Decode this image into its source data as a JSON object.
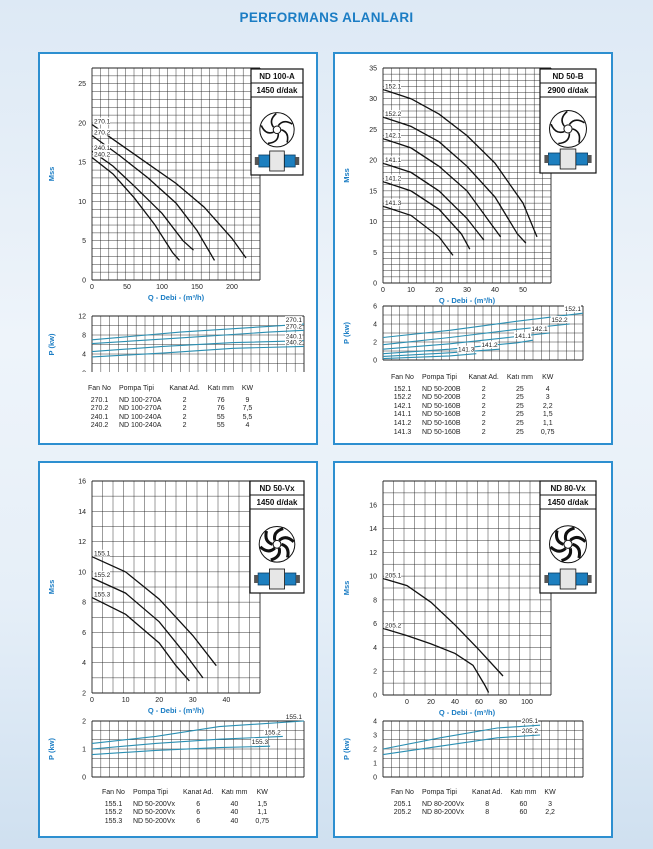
{
  "page_title": "PERFORMANS ALANLARI",
  "colors": {
    "title": "#1b7dc4",
    "frame": "#2d8fd0",
    "curve": "#111111",
    "power_curve": "#2a8fb2",
    "grid": "#222222"
  },
  "table_headers": [
    "Fan No",
    "Pompa Tipi",
    "Kanat Ad.",
    "Katı mm",
    "KW"
  ],
  "chart_data": [
    {
      "type": "line",
      "model": "ND 100-A",
      "speed": "1450 d/dak",
      "xlabel": "Q - Debi - (m³/h)",
      "ylabel": "Mss",
      "plabel": "P (kw)",
      "xlim": [
        0,
        240
      ],
      "ylim": [
        0,
        27
      ],
      "xticks": [
        0,
        50,
        100,
        150,
        200
      ],
      "yticks": [
        0,
        5,
        10,
        15,
        20,
        25
      ],
      "series": [
        {
          "name": "270.1",
          "points": [
            [
              0,
              19.8
            ],
            [
              40,
              17.3
            ],
            [
              80,
              14.8
            ],
            [
              120,
              12.3
            ],
            [
              160,
              9.3
            ],
            [
              200,
              5.3
            ],
            [
              220,
              2.8
            ]
          ]
        },
        {
          "name": "270.2",
          "points": [
            [
              0,
              18.4
            ],
            [
              40,
              15.8
            ],
            [
              80,
              13
            ],
            [
              120,
              9.8
            ],
            [
              150,
              6.3
            ],
            [
              175,
              2.5
            ]
          ]
        },
        {
          "name": "240.1",
          "points": [
            [
              0,
              16.4
            ],
            [
              30,
              14.5
            ],
            [
              60,
              12
            ],
            [
              100,
              8.5
            ],
            [
              130,
              5
            ],
            [
              145,
              3.8
            ]
          ]
        },
        {
          "name": "240.2",
          "points": [
            [
              0,
              15.6
            ],
            [
              30,
              13.5
            ],
            [
              60,
              10.5
            ],
            [
              90,
              7
            ],
            [
              115,
              3.5
            ],
            [
              125,
              2.5
            ]
          ]
        }
      ],
      "power": {
        "ylim": [
          0,
          12
        ],
        "yticks": [
          0,
          4,
          8,
          12
        ],
        "series": [
          {
            "name": "270.1",
            "points": [
              [
                0,
                7
              ],
              [
                100,
                8.6
              ],
              [
                200,
                9.8
              ],
              [
                240,
                10.3
              ]
            ]
          },
          {
            "name": "270.2",
            "points": [
              [
                0,
                6.2
              ],
              [
                100,
                7.4
              ],
              [
                200,
                8.6
              ],
              [
                240,
                9
              ]
            ]
          },
          {
            "name": "240.1",
            "points": [
              [
                0,
                4.5
              ],
              [
                80,
                5.6
              ],
              [
                160,
                6.4
              ],
              [
                240,
                6.8
              ]
            ]
          },
          {
            "name": "240.2",
            "points": [
              [
                0,
                3.4
              ],
              [
                80,
                4.2
              ],
              [
                160,
                5.2
              ],
              [
                240,
                5.6
              ]
            ]
          }
        ]
      },
      "table": [
        [
          "270.1",
          "ND 100-270A",
          "2",
          "76",
          "9"
        ],
        [
          "270.2",
          "ND 100-270A",
          "2",
          "76",
          "7,5"
        ],
        [
          "240.1",
          "ND 100-240A",
          "2",
          "55",
          "5,5"
        ],
        [
          "240.2",
          "ND 100-240A",
          "2",
          "55",
          "4"
        ]
      ]
    },
    {
      "type": "line",
      "model": "ND 50-B",
      "speed": "2900 d/dak",
      "xlabel": "Q - Debi - (m³/h)",
      "ylabel": "Mss",
      "plabel": "P (kw)",
      "xlim": [
        0,
        60
      ],
      "ylim": [
        0,
        35
      ],
      "xticks": [
        0,
        10,
        20,
        30,
        40,
        50
      ],
      "yticks": [
        0,
        5,
        10,
        15,
        20,
        25,
        30,
        35
      ],
      "series": [
        {
          "name": "152.1",
          "points": [
            [
              0,
              31.5
            ],
            [
              10,
              30
            ],
            [
              20,
              27.5
            ],
            [
              30,
              24
            ],
            [
              40,
              19.5
            ],
            [
              50,
              13
            ],
            [
              55,
              7.5
            ]
          ]
        },
        {
          "name": "152.2",
          "points": [
            [
              0,
              27
            ],
            [
              10,
              25.5
            ],
            [
              20,
              23
            ],
            [
              30,
              19
            ],
            [
              40,
              14
            ],
            [
              48,
              8
            ],
            [
              51,
              6.5
            ]
          ]
        },
        {
          "name": "142.1",
          "points": [
            [
              0,
              23.5
            ],
            [
              10,
              22
            ],
            [
              20,
              19
            ],
            [
              30,
              15
            ],
            [
              38,
              10
            ],
            [
              42,
              7.5
            ]
          ]
        },
        {
          "name": "141.1",
          "points": [
            [
              0,
              19.5
            ],
            [
              10,
              18
            ],
            [
              20,
              15
            ],
            [
              30,
              10.5
            ],
            [
              36,
              7
            ]
          ]
        },
        {
          "name": "141.2",
          "points": [
            [
              0,
              16.5
            ],
            [
              10,
              15
            ],
            [
              20,
              12
            ],
            [
              28,
              8
            ],
            [
              31,
              5.5
            ]
          ]
        },
        {
          "name": "141.3",
          "points": [
            [
              0,
              12.5
            ],
            [
              10,
              11
            ],
            [
              20,
              7.5
            ],
            [
              25,
              4.5
            ]
          ]
        }
      ],
      "power": {
        "ylim": [
          0,
          6
        ],
        "yticks": [
          0,
          2,
          4,
          6
        ],
        "series": [
          {
            "name": "152.1",
            "points": [
              [
                0,
                2.5
              ],
              [
                20,
                3.3
              ],
              [
                40,
                4.3
              ],
              [
                60,
                5.2
              ]
            ]
          },
          {
            "name": "152.2",
            "points": [
              [
                0,
                1.7
              ],
              [
                20,
                2.5
              ],
              [
                40,
                3.4
              ],
              [
                56,
                4
              ]
            ]
          },
          {
            "name": "142.1",
            "points": [
              [
                0,
                1.2
              ],
              [
                20,
                1.8
              ],
              [
                40,
                2.6
              ],
              [
                50,
                3
              ]
            ]
          },
          {
            "name": "141.1",
            "points": [
              [
                0,
                0.7
              ],
              [
                20,
                1.2
              ],
              [
                40,
                1.9
              ],
              [
                45,
                2.2
              ]
            ]
          },
          {
            "name": "141.2",
            "points": [
              [
                0,
                0.4
              ],
              [
                20,
                0.8
              ],
              [
                35,
                1.2
              ]
            ]
          },
          {
            "name": "141.3",
            "points": [
              [
                0,
                0.15
              ],
              [
                20,
                0.45
              ],
              [
                28,
                0.7
              ]
            ]
          }
        ]
      },
      "table": [
        [
          "152.1",
          "ND 50-200B",
          "2",
          "25",
          "4"
        ],
        [
          "152.2",
          "ND 50-200B",
          "2",
          "25",
          "3"
        ],
        [
          "142.1",
          "ND 50-160B",
          "2",
          "25",
          "2,2"
        ],
        [
          "141.1",
          "ND 50-160B",
          "2",
          "25",
          "1,5"
        ],
        [
          "141.2",
          "ND 50-160B",
          "2",
          "25",
          "1,1"
        ],
        [
          "141.3",
          "ND 50-160B",
          "2",
          "25",
          "0,75"
        ]
      ]
    },
    {
      "type": "line",
      "model": "ND 50-Vx",
      "speed": "1450 d/dak",
      "xlabel": "Q - Debi - (m³/h)",
      "ylabel": "Mss",
      "plabel": "P (kw)",
      "xlim": [
        0,
        50
      ],
      "ylim": [
        2,
        16
      ],
      "xticks": [
        0,
        10,
        20,
        30,
        40
      ],
      "yticks": [
        2,
        4,
        6,
        8,
        10,
        12,
        14,
        16
      ],
      "series": [
        {
          "name": "155.1",
          "points": [
            [
              0,
              11
            ],
            [
              10,
              10
            ],
            [
              20,
              8.2
            ],
            [
              30,
              5.8
            ],
            [
              37,
              3.8
            ]
          ]
        },
        {
          "name": "155.2",
          "points": [
            [
              0,
              9.6
            ],
            [
              10,
              8.6
            ],
            [
              20,
              6.7
            ],
            [
              28,
              4.5
            ],
            [
              33,
              3
            ]
          ]
        },
        {
          "name": "155.3",
          "points": [
            [
              0,
              8.3
            ],
            [
              10,
              7.2
            ],
            [
              20,
              5.3
            ],
            [
              25,
              3.8
            ],
            [
              29,
              2.8
            ]
          ]
        }
      ],
      "power": {
        "ylim": [
          0,
          2
        ],
        "yticks": [
          0,
          1,
          2
        ],
        "series": [
          {
            "name": "155.1",
            "points": [
              [
                0,
                1.2
              ],
              [
                15,
                1.45
              ],
              [
                30,
                1.8
              ],
              [
                50,
                2
              ]
            ]
          },
          {
            "name": "155.2",
            "points": [
              [
                0,
                1
              ],
              [
                15,
                1.2
              ],
              [
                30,
                1.35
              ],
              [
                45,
                1.45
              ]
            ]
          },
          {
            "name": "155.3",
            "points": [
              [
                0,
                0.8
              ],
              [
                15,
                0.95
              ],
              [
                30,
                1.05
              ],
              [
                42,
                1.1
              ]
            ]
          }
        ]
      },
      "table": [
        [
          "155.1",
          "ND 50-200Vx",
          "6",
          "40",
          "1,5"
        ],
        [
          "155.2",
          "ND 50-200Vx",
          "6",
          "40",
          "1,1"
        ],
        [
          "155.3",
          "ND 50-200Vx",
          "6",
          "40",
          "0,75"
        ]
      ]
    },
    {
      "type": "line",
      "model": "ND 80-Vx",
      "speed": "1450 d/dak",
      "xlabel": "Q - Debi - (m³/h)",
      "ylabel": "Mss",
      "plabel": "P (kw)",
      "xlim": [
        -20,
        120
      ],
      "ylim": [
        0,
        18
      ],
      "xticks": [
        0,
        20,
        40,
        60,
        80,
        100
      ],
      "yticks": [
        0,
        2,
        4,
        6,
        8,
        10,
        12,
        14,
        16
      ],
      "series": [
        {
          "name": "205.1",
          "points": [
            [
              -20,
              9.8
            ],
            [
              0,
              9.2
            ],
            [
              20,
              7.8
            ],
            [
              40,
              5.9
            ],
            [
              60,
              3.8
            ],
            [
              80,
              1.6
            ]
          ]
        },
        {
          "name": "205.2",
          "points": [
            [
              -20,
              5.6
            ],
            [
              0,
              5
            ],
            [
              20,
              4.3
            ],
            [
              40,
              3.5
            ],
            [
              55,
              2.5
            ],
            [
              65,
              0.8
            ],
            [
              68,
              0.2
            ]
          ]
        }
      ],
      "power": {
        "ylim": [
          0,
          4
        ],
        "yticks": [
          0,
          1,
          2,
          3,
          4
        ],
        "series": [
          {
            "name": "205.1",
            "points": [
              [
                -20,
                2
              ],
              [
                20,
                2.8
              ],
              [
                60,
                3.5
              ],
              [
                90,
                3.7
              ]
            ]
          },
          {
            "name": "205.2",
            "points": [
              [
                -20,
                1.6
              ],
              [
                20,
                2.2
              ],
              [
                60,
                2.8
              ],
              [
                90,
                3
              ]
            ]
          }
        ]
      },
      "table": [
        [
          "205.1",
          "ND 80-200Vx",
          "8",
          "60",
          "3"
        ],
        [
          "205.2",
          "ND 80-200Vx",
          "8",
          "60",
          "2,2"
        ]
      ]
    }
  ]
}
